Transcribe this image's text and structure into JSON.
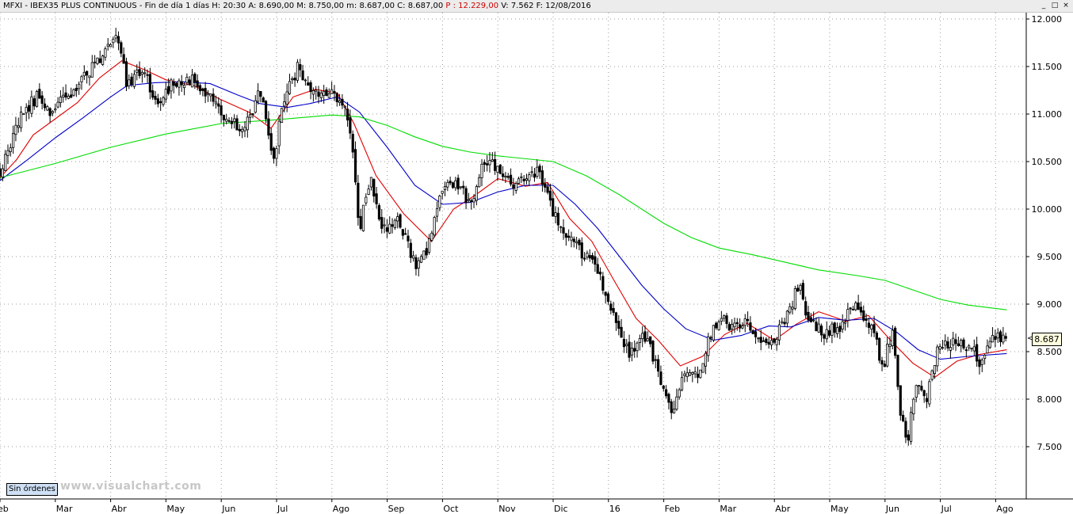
{
  "window": {
    "title_segments": [
      {
        "text": "MFXI - IBEX35 PLUS CONTINUOUS - Fin de día 1 días  H: 20:30  A: 8.690,00  M: 8.750,00  m: 8.687,00  C: 8.687,00  ",
        "color": "#000000"
      },
      {
        "text": "P : 12.229,00",
        "color": "#cc0000"
      },
      {
        "text": "  V: 7.562  F: 12/08/2016",
        "color": "#000000"
      }
    ],
    "controls": [
      "_",
      "□",
      "×"
    ]
  },
  "orders_button": {
    "label": "Sin órdenes"
  },
  "watermark": "www.visualchart.com",
  "last_price_label": "8.687",
  "chart_data": {
    "type": "candlestick",
    "title": "MFXI - IBEX35 PLUS CONTINUOUS",
    "xlabel": "",
    "ylabel": "",
    "ylim": [
      7100,
      12150
    ],
    "y_ticks": [
      7500,
      8000,
      8500,
      9000,
      9500,
      10000,
      10500,
      11000,
      11500,
      12000
    ],
    "y_tick_labels": [
      "7.500",
      "8.000",
      "8.500",
      "9.000",
      "9.500",
      "10.000",
      "10.500",
      "11.000",
      "11.500",
      "12.000"
    ],
    "x_range_months": [
      0,
      18.55
    ],
    "month_labels": [
      "Feb",
      "Mar",
      "Abr",
      "May",
      "Jun",
      "Jul",
      "Ago",
      "Sep",
      "Oct",
      "Nov",
      "Dic",
      "16",
      "Feb",
      "Mar",
      "Abr",
      "May",
      "Jun",
      "Jul",
      "Ago"
    ],
    "grid": true,
    "last_price": 8687,
    "price_anchors": [
      [
        0.0,
        10400
      ],
      [
        0.15,
        10600
      ],
      [
        0.4,
        11000
      ],
      [
        0.7,
        11200
      ],
      [
        0.9,
        11050
      ],
      [
        1.2,
        11150
      ],
      [
        1.5,
        11350
      ],
      [
        1.8,
        11600
      ],
      [
        2.0,
        11700
      ],
      [
        2.15,
        11800
      ],
      [
        2.3,
        11300
      ],
      [
        2.6,
        11500
      ],
      [
        2.85,
        11050
      ],
      [
        3.1,
        11300
      ],
      [
        3.5,
        11350
      ],
      [
        3.8,
        11200
      ],
      [
        4.1,
        10950
      ],
      [
        4.4,
        10800
      ],
      [
        4.7,
        11250
      ],
      [
        4.95,
        10550
      ],
      [
        5.15,
        11200
      ],
      [
        5.4,
        11500
      ],
      [
        5.7,
        11200
      ],
      [
        6.0,
        11200
      ],
      [
        6.2,
        11150
      ],
      [
        6.35,
        10800
      ],
      [
        6.5,
        9800
      ],
      [
        6.7,
        10300
      ],
      [
        6.9,
        9800
      ],
      [
        7.2,
        9900
      ],
      [
        7.5,
        9400
      ],
      [
        7.75,
        9600
      ],
      [
        8.0,
        10200
      ],
      [
        8.25,
        10300
      ],
      [
        8.5,
        10050
      ],
      [
        8.75,
        10500
      ],
      [
        9.0,
        10450
      ],
      [
        9.25,
        10250
      ],
      [
        9.5,
        10300
      ],
      [
        9.75,
        10400
      ],
      [
        10.0,
        9950
      ],
      [
        10.25,
        9700
      ],
      [
        10.5,
        9550
      ],
      [
        10.75,
        9450
      ],
      [
        11.0,
        9050
      ],
      [
        11.2,
        8700
      ],
      [
        11.4,
        8450
      ],
      [
        11.6,
        8750
      ],
      [
        11.8,
        8450
      ],
      [
        12.0,
        8100
      ],
      [
        12.15,
        7850
      ],
      [
        12.4,
        8300
      ],
      [
        12.6,
        8250
      ],
      [
        12.8,
        8600
      ],
      [
        13.0,
        8850
      ],
      [
        13.3,
        8750
      ],
      [
        13.5,
        8800
      ],
      [
        13.8,
        8550
      ],
      [
        14.05,
        8700
      ],
      [
        14.3,
        9000
      ],
      [
        14.45,
        9200
      ],
      [
        14.6,
        8850
      ],
      [
        14.9,
        8700
      ],
      [
        15.2,
        8750
      ],
      [
        15.4,
        9000
      ],
      [
        15.6,
        8900
      ],
      [
        15.8,
        8700
      ],
      [
        15.95,
        8300
      ],
      [
        16.05,
        8550
      ],
      [
        16.15,
        8750
      ],
      [
        16.25,
        8000
      ],
      [
        16.4,
        7450
      ],
      [
        16.55,
        8200
      ],
      [
        16.75,
        8000
      ],
      [
        16.95,
        8550
      ],
      [
        17.2,
        8600
      ],
      [
        17.4,
        8550
      ],
      [
        17.6,
        8500
      ],
      [
        17.75,
        8350
      ],
      [
        17.9,
        8600
      ],
      [
        18.1,
        8650
      ],
      [
        18.2,
        8687
      ]
    ],
    "series": [
      {
        "name": "",
        "color": "#e00000",
        "points": [
          [
            0.0,
            10330
          ],
          [
            0.3,
            10520
          ],
          [
            0.6,
            10780
          ],
          [
            1.0,
            10950
          ],
          [
            1.4,
            11120
          ],
          [
            1.8,
            11380
          ],
          [
            2.2,
            11560
          ],
          [
            2.6,
            11470
          ],
          [
            3.0,
            11360
          ],
          [
            3.5,
            11300
          ],
          [
            4.0,
            11150
          ],
          [
            4.5,
            11020
          ],
          [
            4.9,
            10850
          ],
          [
            5.3,
            11180
          ],
          [
            5.7,
            11260
          ],
          [
            6.1,
            11220
          ],
          [
            6.4,
            10900
          ],
          [
            6.8,
            10350
          ],
          [
            7.3,
            9950
          ],
          [
            7.8,
            9660
          ],
          [
            8.2,
            10000
          ],
          [
            8.6,
            10150
          ],
          [
            9.0,
            10320
          ],
          [
            9.5,
            10240
          ],
          [
            9.9,
            10280
          ],
          [
            10.3,
            9900
          ],
          [
            10.7,
            9660
          ],
          [
            11.1,
            9250
          ],
          [
            11.5,
            8850
          ],
          [
            11.9,
            8620
          ],
          [
            12.3,
            8350
          ],
          [
            12.7,
            8450
          ],
          [
            13.1,
            8680
          ],
          [
            13.5,
            8800
          ],
          [
            14.0,
            8620
          ],
          [
            14.4,
            8790
          ],
          [
            14.8,
            8920
          ],
          [
            15.3,
            8820
          ],
          [
            15.7,
            8880
          ],
          [
            16.1,
            8620
          ],
          [
            16.5,
            8380
          ],
          [
            16.9,
            8230
          ],
          [
            17.3,
            8400
          ],
          [
            17.7,
            8470
          ],
          [
            18.2,
            8520
          ]
        ]
      },
      {
        "name": "",
        "color": "#0000c8",
        "points": [
          [
            0.0,
            10300
          ],
          [
            0.5,
            10520
          ],
          [
            1.0,
            10750
          ],
          [
            1.5,
            10960
          ],
          [
            2.0,
            11180
          ],
          [
            2.3,
            11300
          ],
          [
            2.8,
            11330
          ],
          [
            3.3,
            11340
          ],
          [
            3.8,
            11320
          ],
          [
            4.3,
            11200
          ],
          [
            4.7,
            11110
          ],
          [
            5.2,
            11070
          ],
          [
            5.6,
            11110
          ],
          [
            6.1,
            11180
          ],
          [
            6.5,
            11020
          ],
          [
            7.0,
            10650
          ],
          [
            7.5,
            10250
          ],
          [
            8.0,
            10050
          ],
          [
            8.5,
            10070
          ],
          [
            9.0,
            10180
          ],
          [
            9.5,
            10250
          ],
          [
            10.0,
            10250
          ],
          [
            10.4,
            10050
          ],
          [
            10.8,
            9800
          ],
          [
            11.2,
            9500
          ],
          [
            11.6,
            9200
          ],
          [
            12.0,
            8950
          ],
          [
            12.4,
            8740
          ],
          [
            12.9,
            8620
          ],
          [
            13.4,
            8670
          ],
          [
            13.9,
            8770
          ],
          [
            14.3,
            8760
          ],
          [
            14.8,
            8860
          ],
          [
            15.3,
            8830
          ],
          [
            15.8,
            8850
          ],
          [
            16.2,
            8710
          ],
          [
            16.6,
            8520
          ],
          [
            17.0,
            8420
          ],
          [
            17.5,
            8450
          ],
          [
            18.2,
            8480
          ]
        ]
      },
      {
        "name": "",
        "color": "#00dd00",
        "points": [
          [
            0.0,
            10330
          ],
          [
            1.0,
            10480
          ],
          [
            2.0,
            10650
          ],
          [
            3.0,
            10790
          ],
          [
            4.0,
            10900
          ],
          [
            5.0,
            10940
          ],
          [
            6.0,
            10990
          ],
          [
            6.5,
            10970
          ],
          [
            7.0,
            10880
          ],
          [
            7.5,
            10760
          ],
          [
            8.0,
            10660
          ],
          [
            8.5,
            10600
          ],
          [
            9.0,
            10560
          ],
          [
            10.0,
            10500
          ],
          [
            10.6,
            10350
          ],
          [
            11.2,
            10150
          ],
          [
            12.0,
            9850
          ],
          [
            12.5,
            9700
          ],
          [
            13.0,
            9590
          ],
          [
            13.6,
            9520
          ],
          [
            14.2,
            9440
          ],
          [
            14.8,
            9360
          ],
          [
            15.5,
            9300
          ],
          [
            16.0,
            9250
          ],
          [
            16.5,
            9150
          ],
          [
            17.0,
            9050
          ],
          [
            17.5,
            8990
          ],
          [
            18.2,
            8940
          ]
        ]
      }
    ]
  }
}
